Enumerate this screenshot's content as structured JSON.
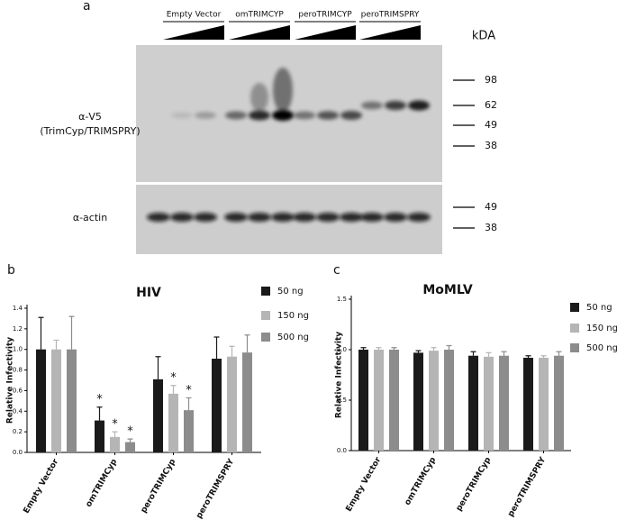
{
  "blot": {
    "panel_label": "a",
    "groups": [
      "Empty Vector",
      "omTRIMCYP",
      "peroTRIMCYP",
      "peroTRIMSPRY"
    ],
    "kda_label": "kDA",
    "upper_markers": [
      98,
      62,
      49,
      38
    ],
    "lower_markers": [
      49,
      38
    ],
    "upper_label": [
      "α-V5",
      "(TrimCyp/TRIMSPRY)"
    ],
    "lower_label": "α-actin"
  },
  "chart_data": [
    {
      "type": "bar",
      "panel_label": "b",
      "title": "HIV",
      "y_label": "Relative Infectivity",
      "categories": [
        "Empty Vector",
        "omTRIMCyp",
        "peroTRIMCyp",
        "peroTRIMSPRY"
      ],
      "series": [
        {
          "name": "50 ng",
          "color": "#1a1a1a",
          "values": [
            1.0,
            0.31,
            0.71,
            0.91
          ],
          "errors": [
            0.31,
            0.13,
            0.22,
            0.21
          ],
          "markers": [
            null,
            "*",
            null,
            null
          ]
        },
        {
          "name": "150 ng",
          "color": "#b5b5b5",
          "values": [
            1.0,
            0.15,
            0.57,
            0.93
          ],
          "errors": [
            0.09,
            0.05,
            0.08,
            0.1
          ],
          "markers": [
            null,
            "*",
            "*",
            null
          ]
        },
        {
          "name": "500 ng",
          "color": "#8c8c8c",
          "values": [
            1.0,
            0.1,
            0.41,
            0.97
          ],
          "errors": [
            0.32,
            0.03,
            0.12,
            0.17
          ],
          "markers": [
            null,
            "*",
            "*",
            null
          ]
        }
      ],
      "ylim": [
        0,
        1.4
      ],
      "yticks": [
        {
          "value": 0,
          "label": "0.0"
        },
        0.2,
        0.4,
        0.6,
        0.8,
        {
          "value": 1,
          "label": "1.0"
        },
        1.2,
        1.4
      ]
    },
    {
      "type": "bar",
      "panel_label": "c",
      "title": "MoMLV",
      "y_label": "Relative Infectivity",
      "categories": [
        "Empty Vector",
        "omTRIMCyp",
        "peroTRIMCyp",
        "peroTRIMSPRY"
      ],
      "series": [
        {
          "name": "50 ng",
          "color": "#1a1a1a",
          "values": [
            1.0,
            0.97,
            0.94,
            0.92
          ],
          "errors": [
            0.02,
            0.02,
            0.04,
            0.02
          ]
        },
        {
          "name": "150 ng",
          "color": "#b5b5b5",
          "values": [
            1.0,
            0.99,
            0.93,
            0.92
          ],
          "errors": [
            0.02,
            0.03,
            0.04,
            0.02
          ]
        },
        {
          "name": "500 ng",
          "color": "#8c8c8c",
          "values": [
            1.0,
            1.0,
            0.94,
            0.94
          ],
          "errors": [
            0.02,
            0.04,
            0.04,
            0.04
          ]
        }
      ],
      "ylim": [
        0,
        1.5
      ],
      "yticks": [
        {
          "value": 0,
          "label": "0.0"
        },
        {
          "value": 0.5,
          "label": "0.5"
        },
        {
          "value": 1,
          "label": "1.0"
        },
        {
          "value": 1.5,
          "label": "1.5"
        }
      ]
    }
  ]
}
